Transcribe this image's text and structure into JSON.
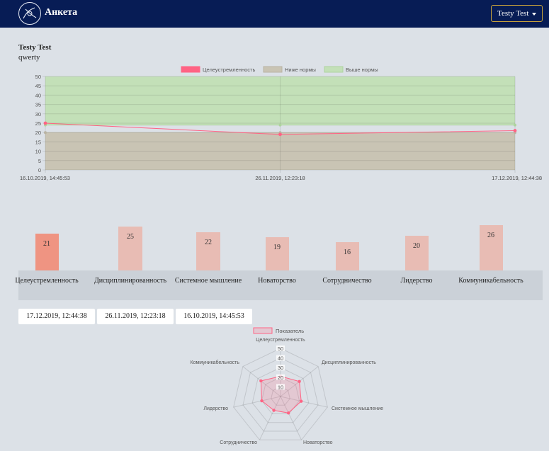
{
  "header": {
    "brand": "Анкета",
    "user_menu_label": "Testy Test"
  },
  "profile": {
    "name": "Testy Test",
    "subtitle": "qwerty"
  },
  "line_chart": {
    "legend": [
      "Целеустремленность",
      "Ниже нормы",
      "Выше нормы"
    ],
    "colors": {
      "series": "#ff6384",
      "below": "#c9c4b4",
      "above": "#c3e0b8"
    }
  },
  "bar_chart": {
    "categories": [
      "Целеустремленность",
      "Дисциплинированность",
      "Системное мышление",
      "Новаторство",
      "Сотрудничество",
      "Лидерство",
      "Коммуникабельность"
    ],
    "values": [
      21,
      25,
      22,
      19,
      16,
      20,
      26
    ],
    "active_index": 0
  },
  "dates": [
    "17.12.2019, 12:44:38",
    "26.11.2019, 12:23:18",
    "16.10.2019, 14:45:53"
  ],
  "radar_chart": {
    "legend": "Показатель",
    "labels": [
      "Целеустремленность",
      "Дисциплинированность",
      "Системное мышление",
      "Новаторство",
      "Сотрудничество",
      "Лидерство",
      "Коммуникабельность"
    ]
  },
  "chart_data": [
    {
      "type": "line",
      "x": [
        "16.10.2019, 14:45:53",
        "26.11.2019, 12:23:18",
        "17.12.2019, 12:44:38"
      ],
      "series": [
        {
          "name": "Целеустремленность",
          "values": [
            25,
            19,
            21
          ]
        },
        {
          "name": "Ниже нормы",
          "values": [
            20,
            20,
            20
          ]
        },
        {
          "name": "Выше нормы",
          "values": [
            24,
            24,
            24
          ]
        }
      ],
      "ylim": [
        0,
        50
      ],
      "yticks": [
        0,
        5,
        10,
        15,
        20,
        25,
        30,
        35,
        40,
        45,
        50
      ],
      "grid": true,
      "legend_position": "top"
    },
    {
      "type": "bar",
      "categories": [
        "Целеустремленность",
        "Дисциплинированность",
        "Системное мышление",
        "Новаторство",
        "Сотрудничество",
        "Лидерство",
        "Коммуникабельность"
      ],
      "values": [
        21,
        25,
        22,
        19,
        16,
        20,
        26
      ]
    },
    {
      "type": "radar",
      "categories": [
        "Целеустремленность",
        "Дисциплинированность",
        "Системное мышление",
        "Новаторство",
        "Сотрудничество",
        "Лидерство",
        "Коммуникабельность"
      ],
      "series": [
        {
          "name": "Показатель",
          "values": [
            21,
            25,
            22,
            19,
            16,
            20,
            26
          ]
        }
      ],
      "rlim": [
        0,
        50
      ],
      "rticks": [
        10,
        20,
        30,
        40,
        50
      ],
      "legend_position": "top"
    }
  ]
}
